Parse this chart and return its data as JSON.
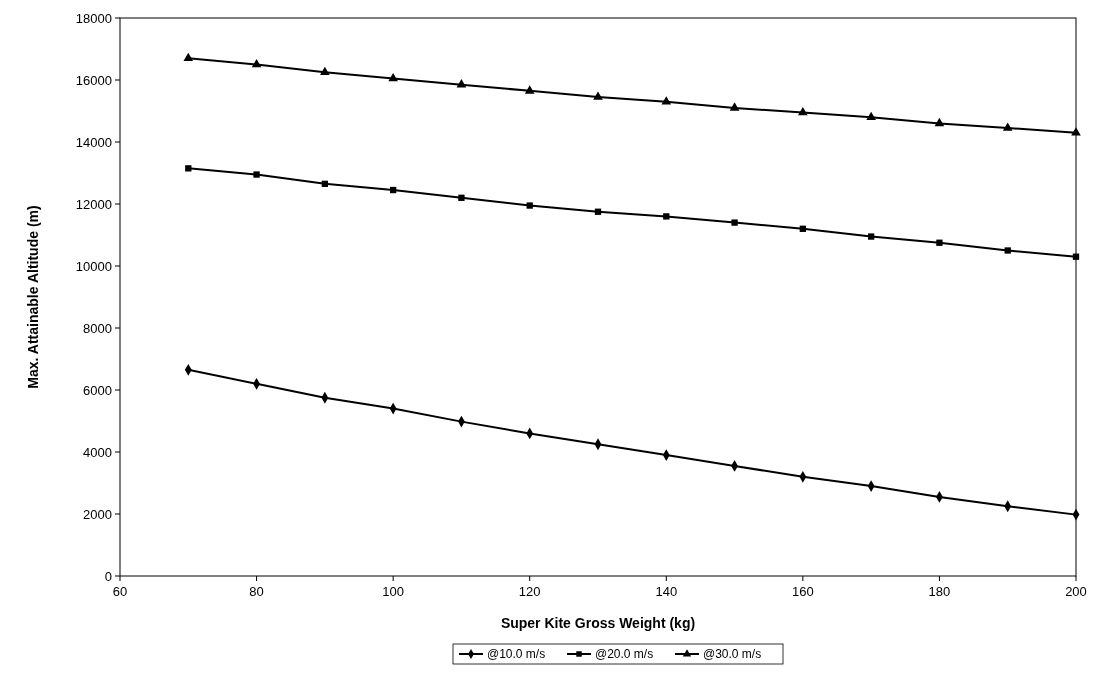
{
  "chart_data": {
    "type": "line",
    "xlabel": "Super Kite Gross Weight (kg)",
    "ylabel": "Max. Attainable Altitude (m)",
    "x": [
      70,
      80,
      90,
      100,
      110,
      120,
      130,
      140,
      150,
      160,
      170,
      180,
      190,
      200
    ],
    "xlim": [
      60,
      200
    ],
    "xticks": [
      60,
      80,
      100,
      120,
      140,
      160,
      180,
      200
    ],
    "ylim": [
      0,
      18000
    ],
    "yticks": [
      0,
      2000,
      4000,
      6000,
      8000,
      10000,
      12000,
      14000,
      16000,
      18000
    ],
    "grid": false,
    "legend": "bottom",
    "line_style": "solid",
    "series": [
      {
        "name": "@10.0 m/s",
        "color": "#000000",
        "marker": "diamond",
        "values": [
          6650,
          6200,
          5750,
          5400,
          4980,
          4600,
          4250,
          3900,
          3550,
          3200,
          2900,
          2550,
          2250,
          1980
        ]
      },
      {
        "name": "@20.0 m/s",
        "color": "#000000",
        "marker": "square",
        "values": [
          13150,
          12950,
          12650,
          12450,
          12200,
          11950,
          11750,
          11600,
          11400,
          11200,
          10950,
          10750,
          10500,
          10300
        ]
      },
      {
        "name": "@30.0 m/s",
        "color": "#000000",
        "marker": "triangle",
        "values": [
          16700,
          16500,
          16250,
          16050,
          15850,
          15650,
          15450,
          15300,
          15100,
          14950,
          14800,
          14600,
          14450,
          14300
        ]
      }
    ]
  }
}
